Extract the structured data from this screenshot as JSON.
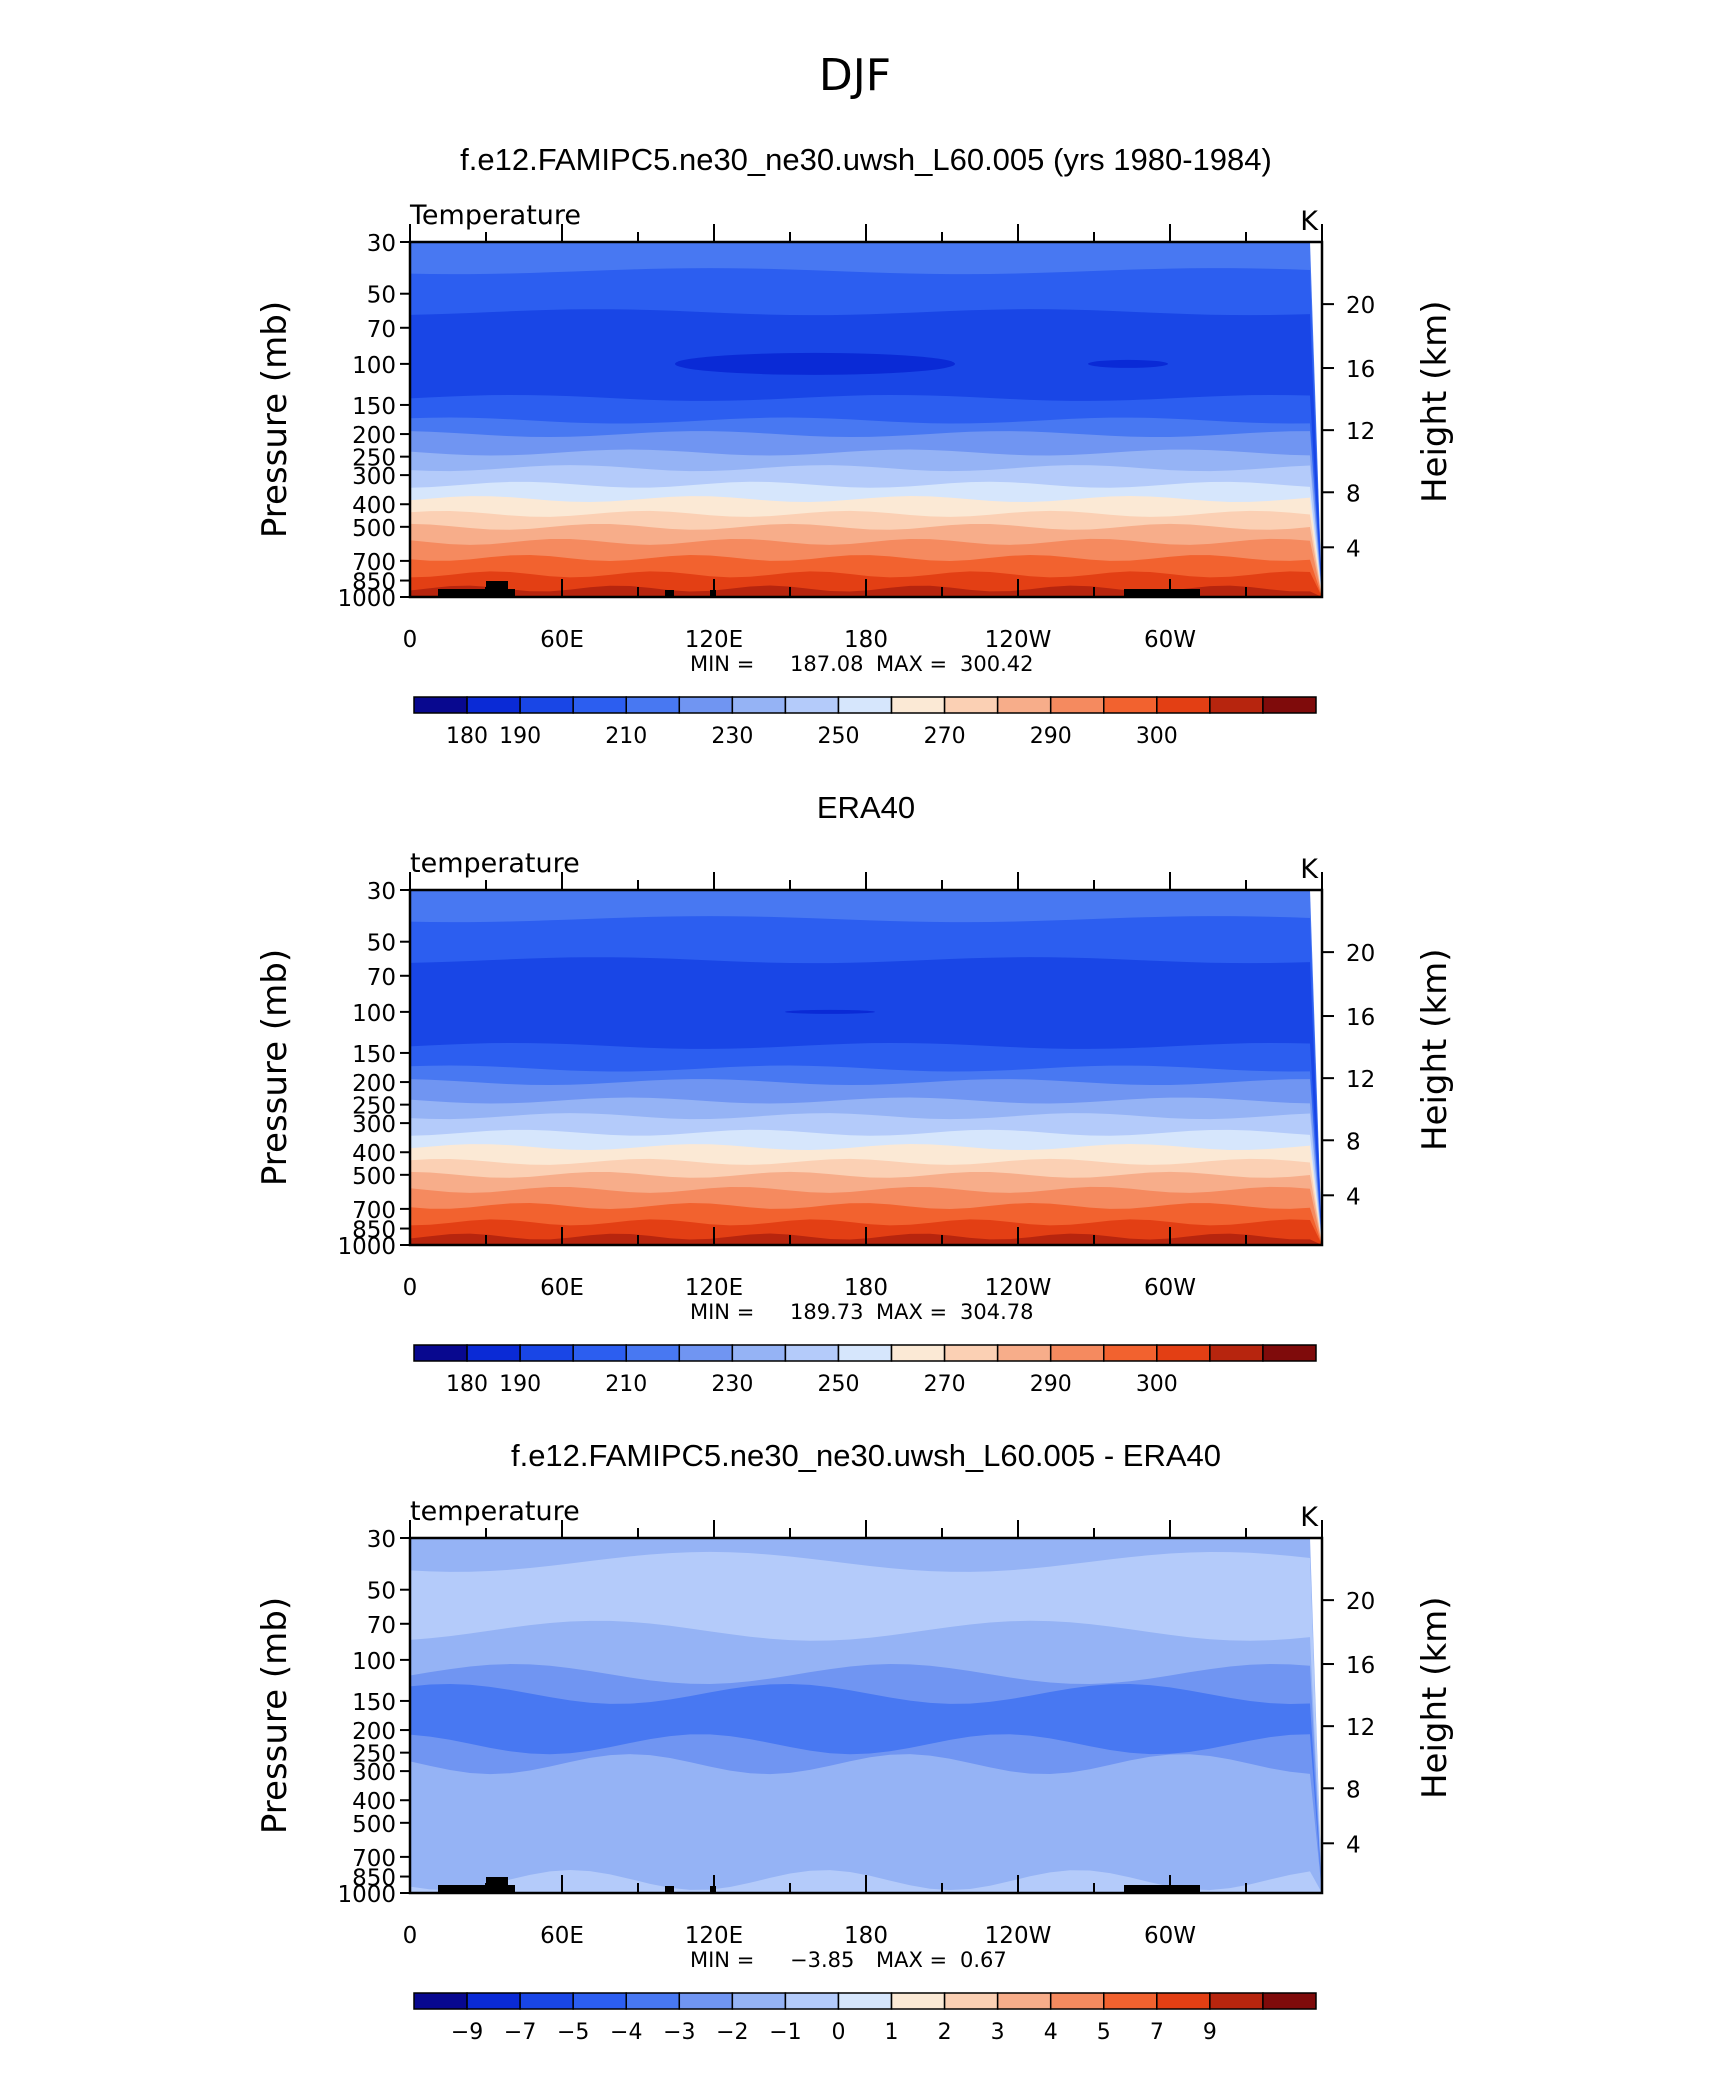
{
  "page_title": "DJF",
  "colors": {
    "temp_palette": [
      "#08088f",
      "#0a2ad6",
      "#1946e6",
      "#2c5ef0",
      "#4878f2",
      "#7095f2",
      "#95b3f5",
      "#b4cbfa",
      "#d6e6fc",
      "#fbe9d5",
      "#fbd0b4",
      "#f7ad8a",
      "#f58a5f",
      "#f2622f",
      "#e33f14",
      "#b7250e",
      "#7f0b0b"
    ],
    "land": "#000000"
  },
  "chart_data": [
    {
      "type": "heatmap",
      "title": "f.e12.FAMIPC5.ne30_ne30.uwsh_L60.005 (yrs 1980-1984)",
      "left_label": "Temperature",
      "units": "K",
      "ylabel": "Pressure (mb)",
      "ylabel_right": "Height (km)",
      "y_ticks": [
        "30",
        "50",
        "70",
        "100",
        "150",
        "200",
        "250",
        "300",
        "400",
        "500",
        "700",
        "850",
        "1000"
      ],
      "y_ticks_right": [
        "20",
        "16",
        "12",
        "8",
        "4"
      ],
      "x_ticks": [
        "0",
        "60E",
        "120E",
        "180",
        "120W",
        "60W"
      ],
      "min_label": "MIN =",
      "min_value": "187.08",
      "max_label": "MAX =",
      "max_value": "300.42",
      "colorbar_labels": [
        "180",
        "190",
        "210",
        "230",
        "250",
        "270",
        "290",
        "300"
      ],
      "bands": [
        {
          "p": 30,
          "level": 4
        },
        {
          "p": 40,
          "level": 3
        },
        {
          "p": 60,
          "level": 2
        },
        {
          "p": 140,
          "level": 3
        },
        {
          "p": 175,
          "level": 4
        },
        {
          "p": 200,
          "level": 5
        },
        {
          "p": 240,
          "level": 6
        },
        {
          "p": 280,
          "level": 7
        },
        {
          "p": 330,
          "level": 8
        },
        {
          "p": 380,
          "level": 9
        },
        {
          "p": 440,
          "level": 10
        },
        {
          "p": 500,
          "level": 11
        },
        {
          "p": 580,
          "level": 12
        },
        {
          "p": 680,
          "level": 13
        },
        {
          "p": 800,
          "level": 14
        },
        {
          "p": 920,
          "level": 15
        }
      ],
      "minimum_region": "100 mb, 120E–160W"
    },
    {
      "type": "heatmap",
      "title": "ERA40",
      "left_label": "temperature",
      "units": "K",
      "ylabel": "Pressure (mb)",
      "ylabel_right": "Height (km)",
      "y_ticks": [
        "30",
        "50",
        "70",
        "100",
        "150",
        "200",
        "250",
        "300",
        "400",
        "500",
        "700",
        "850",
        "1000"
      ],
      "y_ticks_right": [
        "20",
        "16",
        "12",
        "8",
        "4"
      ],
      "x_ticks": [
        "0",
        "60E",
        "120E",
        "180",
        "120W",
        "60W"
      ],
      "min_label": "MIN =",
      "min_value": "189.73",
      "max_label": "MAX =",
      "max_value": "304.78",
      "colorbar_labels": [
        "180",
        "190",
        "210",
        "230",
        "250",
        "270",
        "290",
        "300"
      ],
      "bands": [
        {
          "p": 30,
          "level": 4
        },
        {
          "p": 40,
          "level": 3
        },
        {
          "p": 60,
          "level": 2
        },
        {
          "p": 140,
          "level": 3
        },
        {
          "p": 175,
          "level": 4
        },
        {
          "p": 200,
          "level": 5
        },
        {
          "p": 240,
          "level": 6
        },
        {
          "p": 280,
          "level": 7
        },
        {
          "p": 330,
          "level": 8
        },
        {
          "p": 380,
          "level": 9
        },
        {
          "p": 440,
          "level": 10
        },
        {
          "p": 500,
          "level": 11
        },
        {
          "p": 580,
          "level": 12
        },
        {
          "p": 680,
          "level": 13
        },
        {
          "p": 800,
          "level": 14
        },
        {
          "p": 920,
          "level": 15
        }
      ]
    },
    {
      "type": "heatmap",
      "title": "f.e12.FAMIPC5.ne30_ne30.uwsh_L60.005 - ERA40",
      "left_label": "temperature",
      "units": "K",
      "ylabel": "Pressure (mb)",
      "ylabel_right": "Height (km)",
      "y_ticks": [
        "30",
        "50",
        "70",
        "100",
        "150",
        "200",
        "250",
        "300",
        "400",
        "500",
        "700",
        "850",
        "1000"
      ],
      "y_ticks_right": [
        "20",
        "16",
        "12",
        "8",
        "4"
      ],
      "x_ticks": [
        "0",
        "60E",
        "120E",
        "180",
        "120W",
        "60W"
      ],
      "min_label": "MIN =",
      "min_value": "−3.85",
      "max_label": "MAX =",
      "max_value": "0.67",
      "colorbar_labels": [
        "−9",
        "−7",
        "−5",
        "−4",
        "−3",
        "−2",
        "−1",
        "0",
        "1",
        "2",
        "3",
        "4",
        "5",
        "7",
        "9"
      ],
      "bands": [
        {
          "p": 30,
          "level": 6
        },
        {
          "p": 38,
          "level": 7
        },
        {
          "p": 75,
          "level": 6
        },
        {
          "p": 115,
          "level": 5
        },
        {
          "p": 140,
          "level": 4
        },
        {
          "p": 230,
          "level": 5
        },
        {
          "p": 280,
          "level": 6
        },
        {
          "p": 880,
          "level": 7
        }
      ]
    }
  ]
}
